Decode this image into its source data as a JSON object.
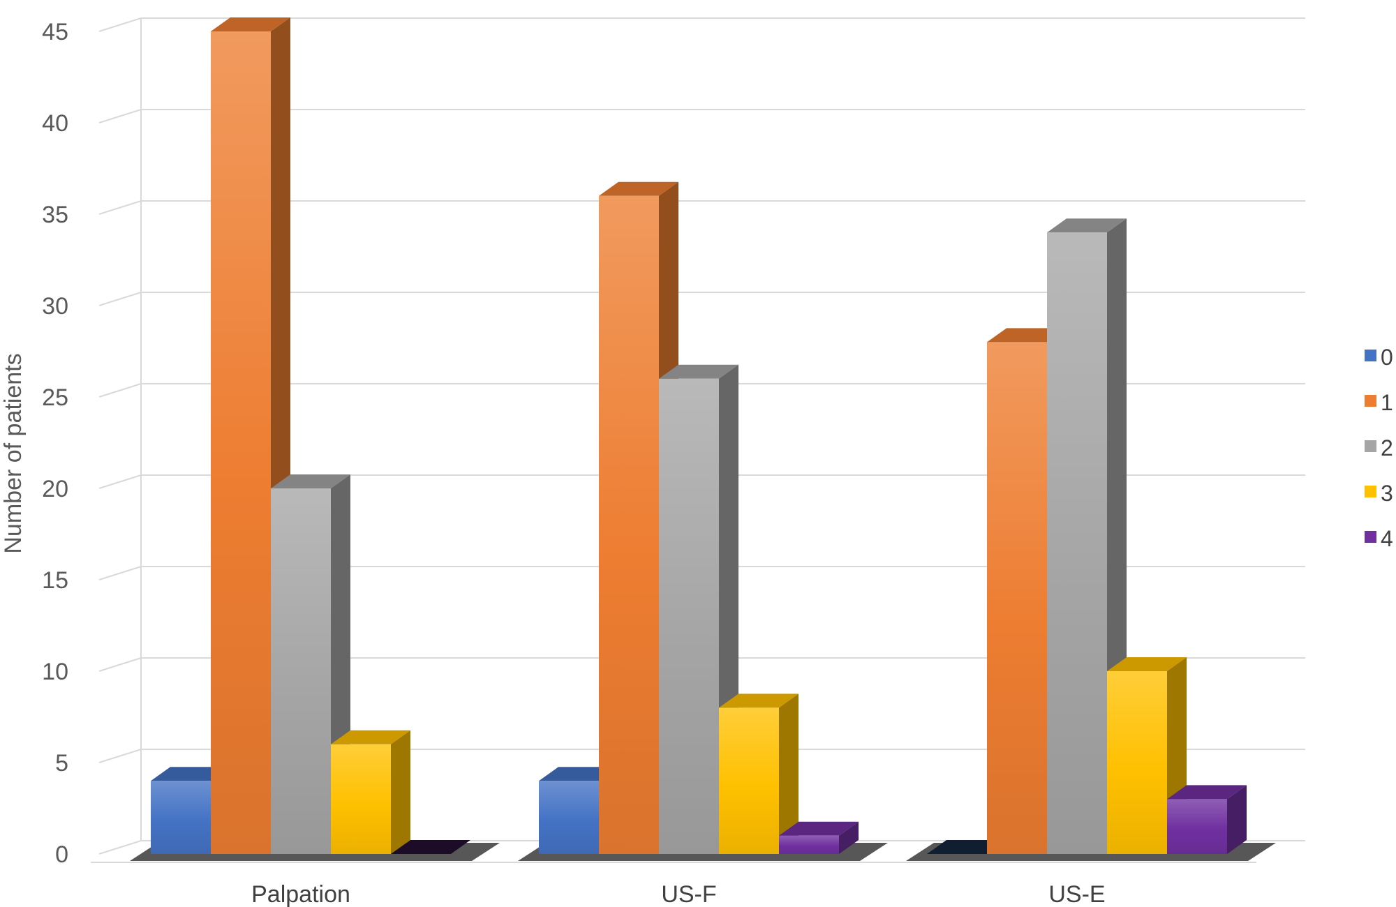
{
  "chart_data": {
    "type": "bar",
    "title": "",
    "xlabel": "",
    "ylabel": "Number of patients",
    "ylim": [
      0,
      45
    ],
    "yticks": [
      0,
      5,
      10,
      15,
      20,
      25,
      30,
      35,
      40,
      45
    ],
    "categories": [
      "Palpation",
      "US-F",
      "US-E"
    ],
    "series": [
      {
        "name": "0",
        "values": [
          4,
          4,
          0
        ],
        "color": "#4472C4"
      },
      {
        "name": "1",
        "values": [
          45,
          36,
          28
        ],
        "color": "#ED7D31"
      },
      {
        "name": "2",
        "values": [
          20,
          26,
          34
        ],
        "color": "#A5A5A5"
      },
      {
        "name": "3",
        "values": [
          6,
          8,
          10
        ],
        "color": "#FFC000"
      },
      {
        "name": "4",
        "values": [
          0,
          1,
          3
        ],
        "color": "#7030A0"
      }
    ],
    "legend": "right",
    "grid": true,
    "style": "3d-clustered-column"
  }
}
